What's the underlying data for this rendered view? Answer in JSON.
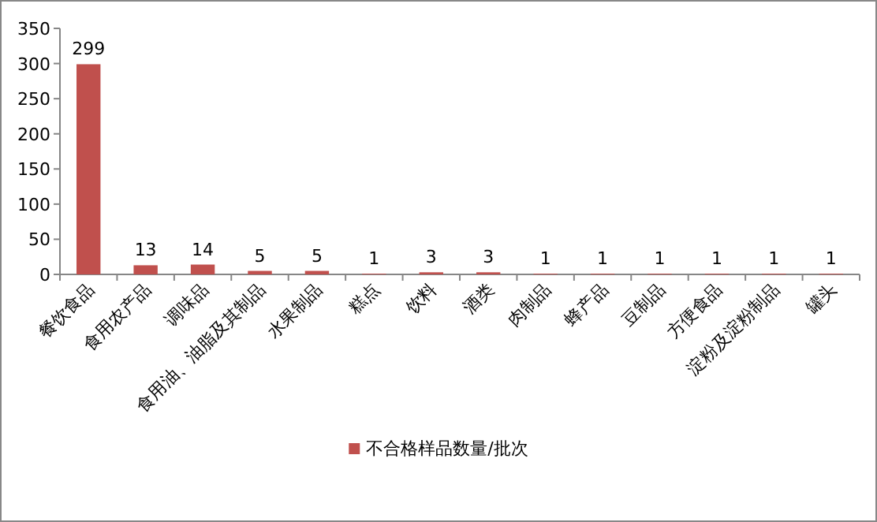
{
  "chart_data": {
    "type": "bar",
    "categories": [
      "餐饮食品",
      "食用农产品",
      "调味品",
      "食用油、油脂及其制品",
      "水果制品",
      "糕点",
      "饮料",
      "酒类",
      "肉制品",
      "蜂产品",
      "豆制品",
      "方便食品",
      "淀粉及淀粉制品",
      "罐头"
    ],
    "series": [
      {
        "name": "不合格样品数量/批次",
        "color": "#c0504d",
        "values": [
          299,
          13,
          14,
          5,
          5,
          1,
          3,
          3,
          1,
          1,
          1,
          1,
          1,
          1
        ]
      }
    ],
    "ylim": [
      0,
      350
    ],
    "yticks": [
      0,
      50,
      100,
      150,
      200,
      250,
      300,
      350
    ],
    "data_labels": true,
    "legend": "bottom",
    "grid": false
  }
}
